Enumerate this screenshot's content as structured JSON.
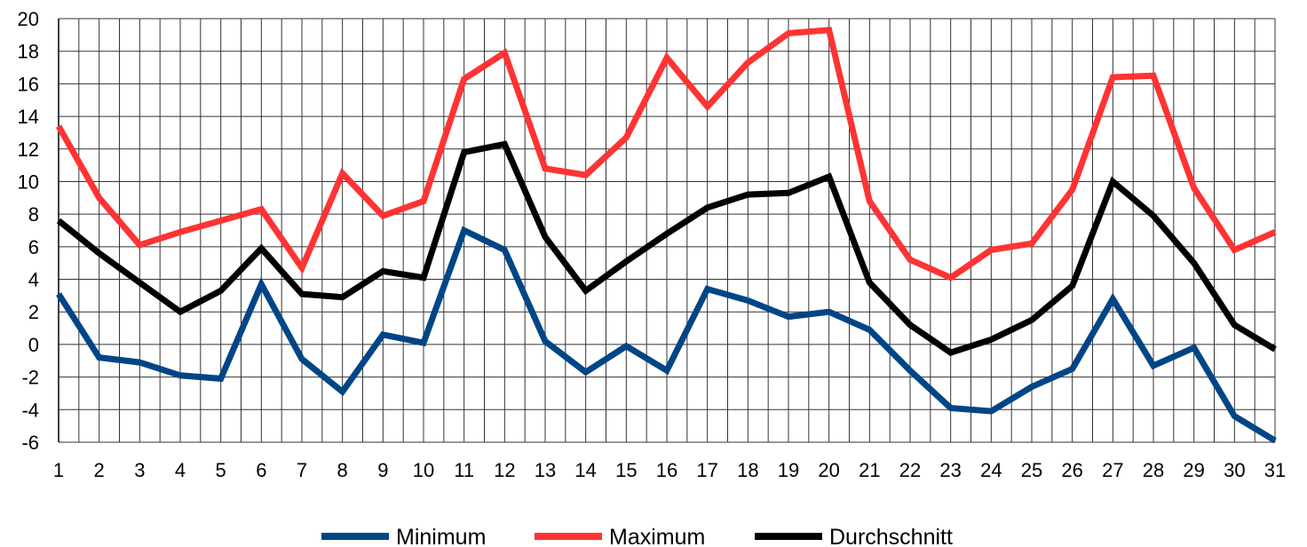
{
  "chart_data": {
    "type": "line",
    "x": [
      1,
      2,
      3,
      4,
      5,
      6,
      7,
      8,
      9,
      10,
      11,
      12,
      13,
      14,
      15,
      16,
      17,
      18,
      19,
      20,
      21,
      22,
      23,
      24,
      25,
      26,
      27,
      28,
      29,
      30,
      31
    ],
    "ylim": [
      -6,
      20
    ],
    "yticks": [
      -6,
      -4,
      -2,
      0,
      2,
      4,
      6,
      8,
      10,
      12,
      14,
      16,
      18,
      20
    ],
    "grid": true,
    "legend": "bottom",
    "series": [
      {
        "name": "Minimum",
        "color": "#004586",
        "values": [
          3.1,
          -0.8,
          -1.1,
          -1.9,
          -2.1,
          3.7,
          -0.9,
          -2.9,
          0.6,
          0.1,
          7.0,
          5.8,
          0.2,
          -1.7,
          -0.1,
          -1.6,
          3.4,
          2.7,
          1.7,
          2.0,
          0.9,
          -1.6,
          -3.9,
          -4.1,
          -2.6,
          -1.5,
          2.8,
          -1.3,
          -0.2,
          -4.4,
          -5.9
        ]
      },
      {
        "name": "Maximum",
        "color": "#ff3333",
        "values": [
          13.4,
          9.0,
          6.1,
          6.9,
          7.6,
          8.3,
          4.7,
          10.5,
          7.9,
          8.8,
          16.3,
          17.9,
          10.8,
          10.4,
          12.7,
          17.6,
          14.6,
          17.3,
          19.1,
          19.3,
          8.8,
          5.2,
          4.1,
          5.8,
          6.2,
          9.5,
          16.4,
          16.5,
          9.6,
          5.8,
          6.9
        ]
      },
      {
        "name": "Durchschnitt",
        "color": "#000000",
        "values": [
          7.6,
          5.6,
          3.8,
          2.0,
          3.3,
          5.9,
          3.1,
          2.9,
          4.5,
          4.1,
          11.8,
          12.3,
          6.6,
          3.3,
          5.1,
          6.8,
          8.4,
          9.2,
          9.3,
          10.3,
          3.8,
          1.2,
          -0.5,
          0.3,
          1.5,
          3.6,
          10.0,
          7.9,
          5.0,
          1.2,
          -0.3
        ]
      }
    ]
  }
}
